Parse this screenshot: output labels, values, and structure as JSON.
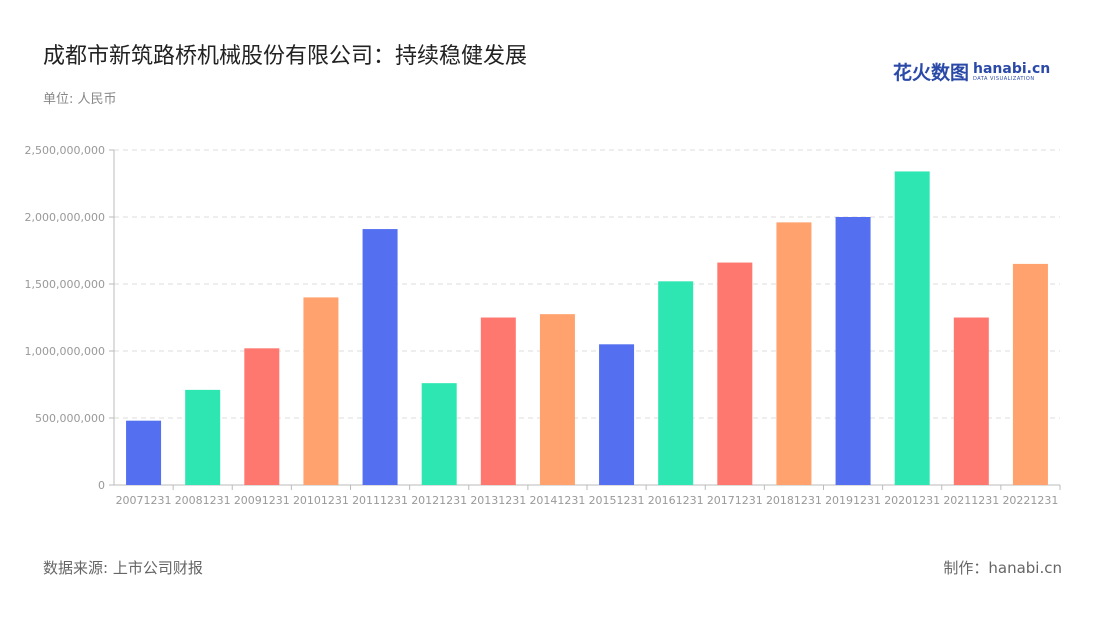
{
  "title": "成都市新筑路桥机械股份有限公司：持续稳健发展",
  "unit": "单位: 人民币",
  "logo": {
    "cn": "花火数图",
    "en": "hanabi.cn",
    "tagline": "DATA VISUALIZATION"
  },
  "source": "数据来源: 上市公司财报",
  "credit": "制作：hanabi.cn",
  "colors": {
    "blue": "#5470f0",
    "green": "#2ee6b2",
    "red": "#ff7870",
    "orange": "#ffa26e"
  },
  "chart_data": {
    "type": "bar",
    "categories": [
      "20071231",
      "20081231",
      "20091231",
      "20101231",
      "20111231",
      "20121231",
      "20131231",
      "20141231",
      "20151231",
      "20161231",
      "20171231",
      "20181231",
      "20191231",
      "20201231",
      "20211231",
      "20221231"
    ],
    "values": [
      480000000,
      710000000,
      1020000000,
      1400000000,
      1910000000,
      760000000,
      1250000000,
      1275000000,
      1050000000,
      1520000000,
      1660000000,
      1960000000,
      2000000000,
      2340000000,
      1250000000,
      1650000000
    ],
    "bar_colors": [
      "#5470f0",
      "#2ee6b2",
      "#ff7870",
      "#ffa26e",
      "#5470f0",
      "#2ee6b2",
      "#ff7870",
      "#ffa26e",
      "#5470f0",
      "#2ee6b2",
      "#ff7870",
      "#ffa26e",
      "#5470f0",
      "#2ee6b2",
      "#ff7870",
      "#ffa26e"
    ],
    "ylim": [
      0,
      2500000000
    ],
    "yticks": [
      "0",
      "500,000,000",
      "1,000,000,000",
      "1,500,000,000",
      "2,000,000,000",
      "2,500,000,000"
    ],
    "ytick_values": [
      0,
      500000000,
      1000000000,
      1500000000,
      2000000000,
      2500000000
    ],
    "grid": true
  }
}
